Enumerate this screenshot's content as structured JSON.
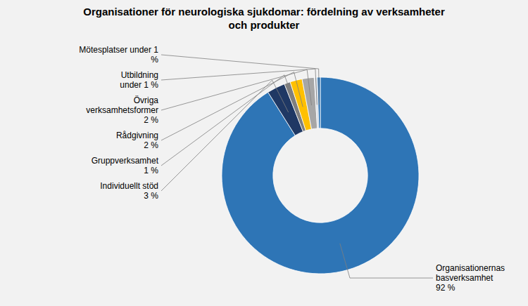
{
  "chart_data": {
    "type": "pie",
    "title": "Organisationer för neurologiska sjukdomar: fördelning av verksamheter\noch produkter",
    "categories": [
      "Organisationernas\nbasverksamhet\n92 %",
      "Individuellt stöd\n3 %",
      "Gruppverksamhet\n1 %",
      "Rådgivning\n2 %",
      "Övriga\nverksamhetsformer\n2 %",
      "Utbildning\nunder 1 %",
      "Mötesplatser under 1\n%"
    ],
    "values": [
      92,
      3,
      1,
      2,
      2,
      0.5,
      0.5
    ],
    "colors": [
      "#2e75b6",
      "#1f3864",
      "#7f7f7f",
      "#ffc000",
      "#a6a6a6",
      "#d6dce4",
      "#2e75b6"
    ]
  }
}
